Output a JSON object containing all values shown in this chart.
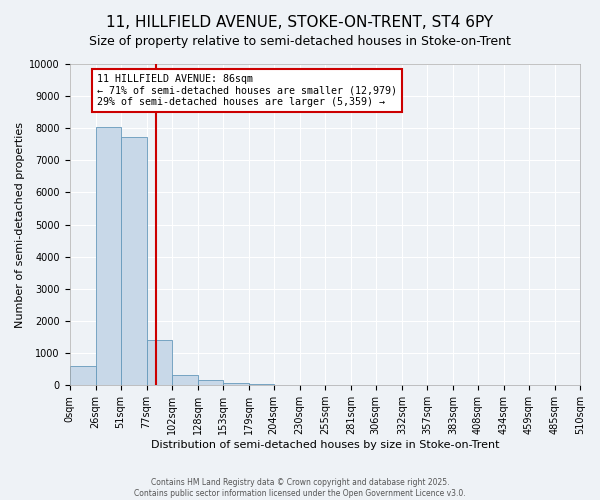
{
  "title": "11, HILLFIELD AVENUE, STOKE-ON-TRENT, ST4 6PY",
  "subtitle": "Size of property relative to semi-detached houses in Stoke-on-Trent",
  "xlabel": "Distribution of semi-detached houses by size in Stoke-on-Trent",
  "ylabel": "Number of semi-detached properties",
  "bin_labels": [
    "0sqm",
    "26sqm",
    "51sqm",
    "77sqm",
    "102sqm",
    "128sqm",
    "153sqm",
    "179sqm",
    "204sqm",
    "230sqm",
    "255sqm",
    "281sqm",
    "306sqm",
    "332sqm",
    "357sqm",
    "383sqm",
    "408sqm",
    "434sqm",
    "459sqm",
    "485sqm",
    "510sqm"
  ],
  "bin_edges": [
    0,
    26,
    51,
    77,
    102,
    128,
    153,
    179,
    204,
    230,
    255,
    281,
    306,
    332,
    357,
    383,
    408,
    434,
    459,
    485,
    510
  ],
  "bar_heights": [
    600,
    8030,
    7720,
    1400,
    310,
    150,
    80,
    50,
    0,
    0,
    0,
    0,
    0,
    0,
    0,
    0,
    0,
    0,
    0,
    0
  ],
  "bar_color": "#c8d8e8",
  "bar_edge_color": "#6699bb",
  "property_size": 86,
  "vline_color": "#cc0000",
  "annotation_title": "11 HILLFIELD AVENUE: 86sqm",
  "annotation_line1": "← 71% of semi-detached houses are smaller (12,979)",
  "annotation_line2": "29% of semi-detached houses are larger (5,359) →",
  "annotation_box_color": "#cc0000",
  "ylim": [
    0,
    10000
  ],
  "yticks": [
    0,
    1000,
    2000,
    3000,
    4000,
    5000,
    6000,
    7000,
    8000,
    9000,
    10000
  ],
  "footer1": "Contains HM Land Registry data © Crown copyright and database right 2025.",
  "footer2": "Contains public sector information licensed under the Open Government Licence v3.0.",
  "bg_color": "#eef2f6",
  "grid_color": "#ffffff",
  "title_fontsize": 11,
  "subtitle_fontsize": 9,
  "tick_fontsize": 7,
  "ylabel_fontsize": 8,
  "xlabel_fontsize": 8
}
